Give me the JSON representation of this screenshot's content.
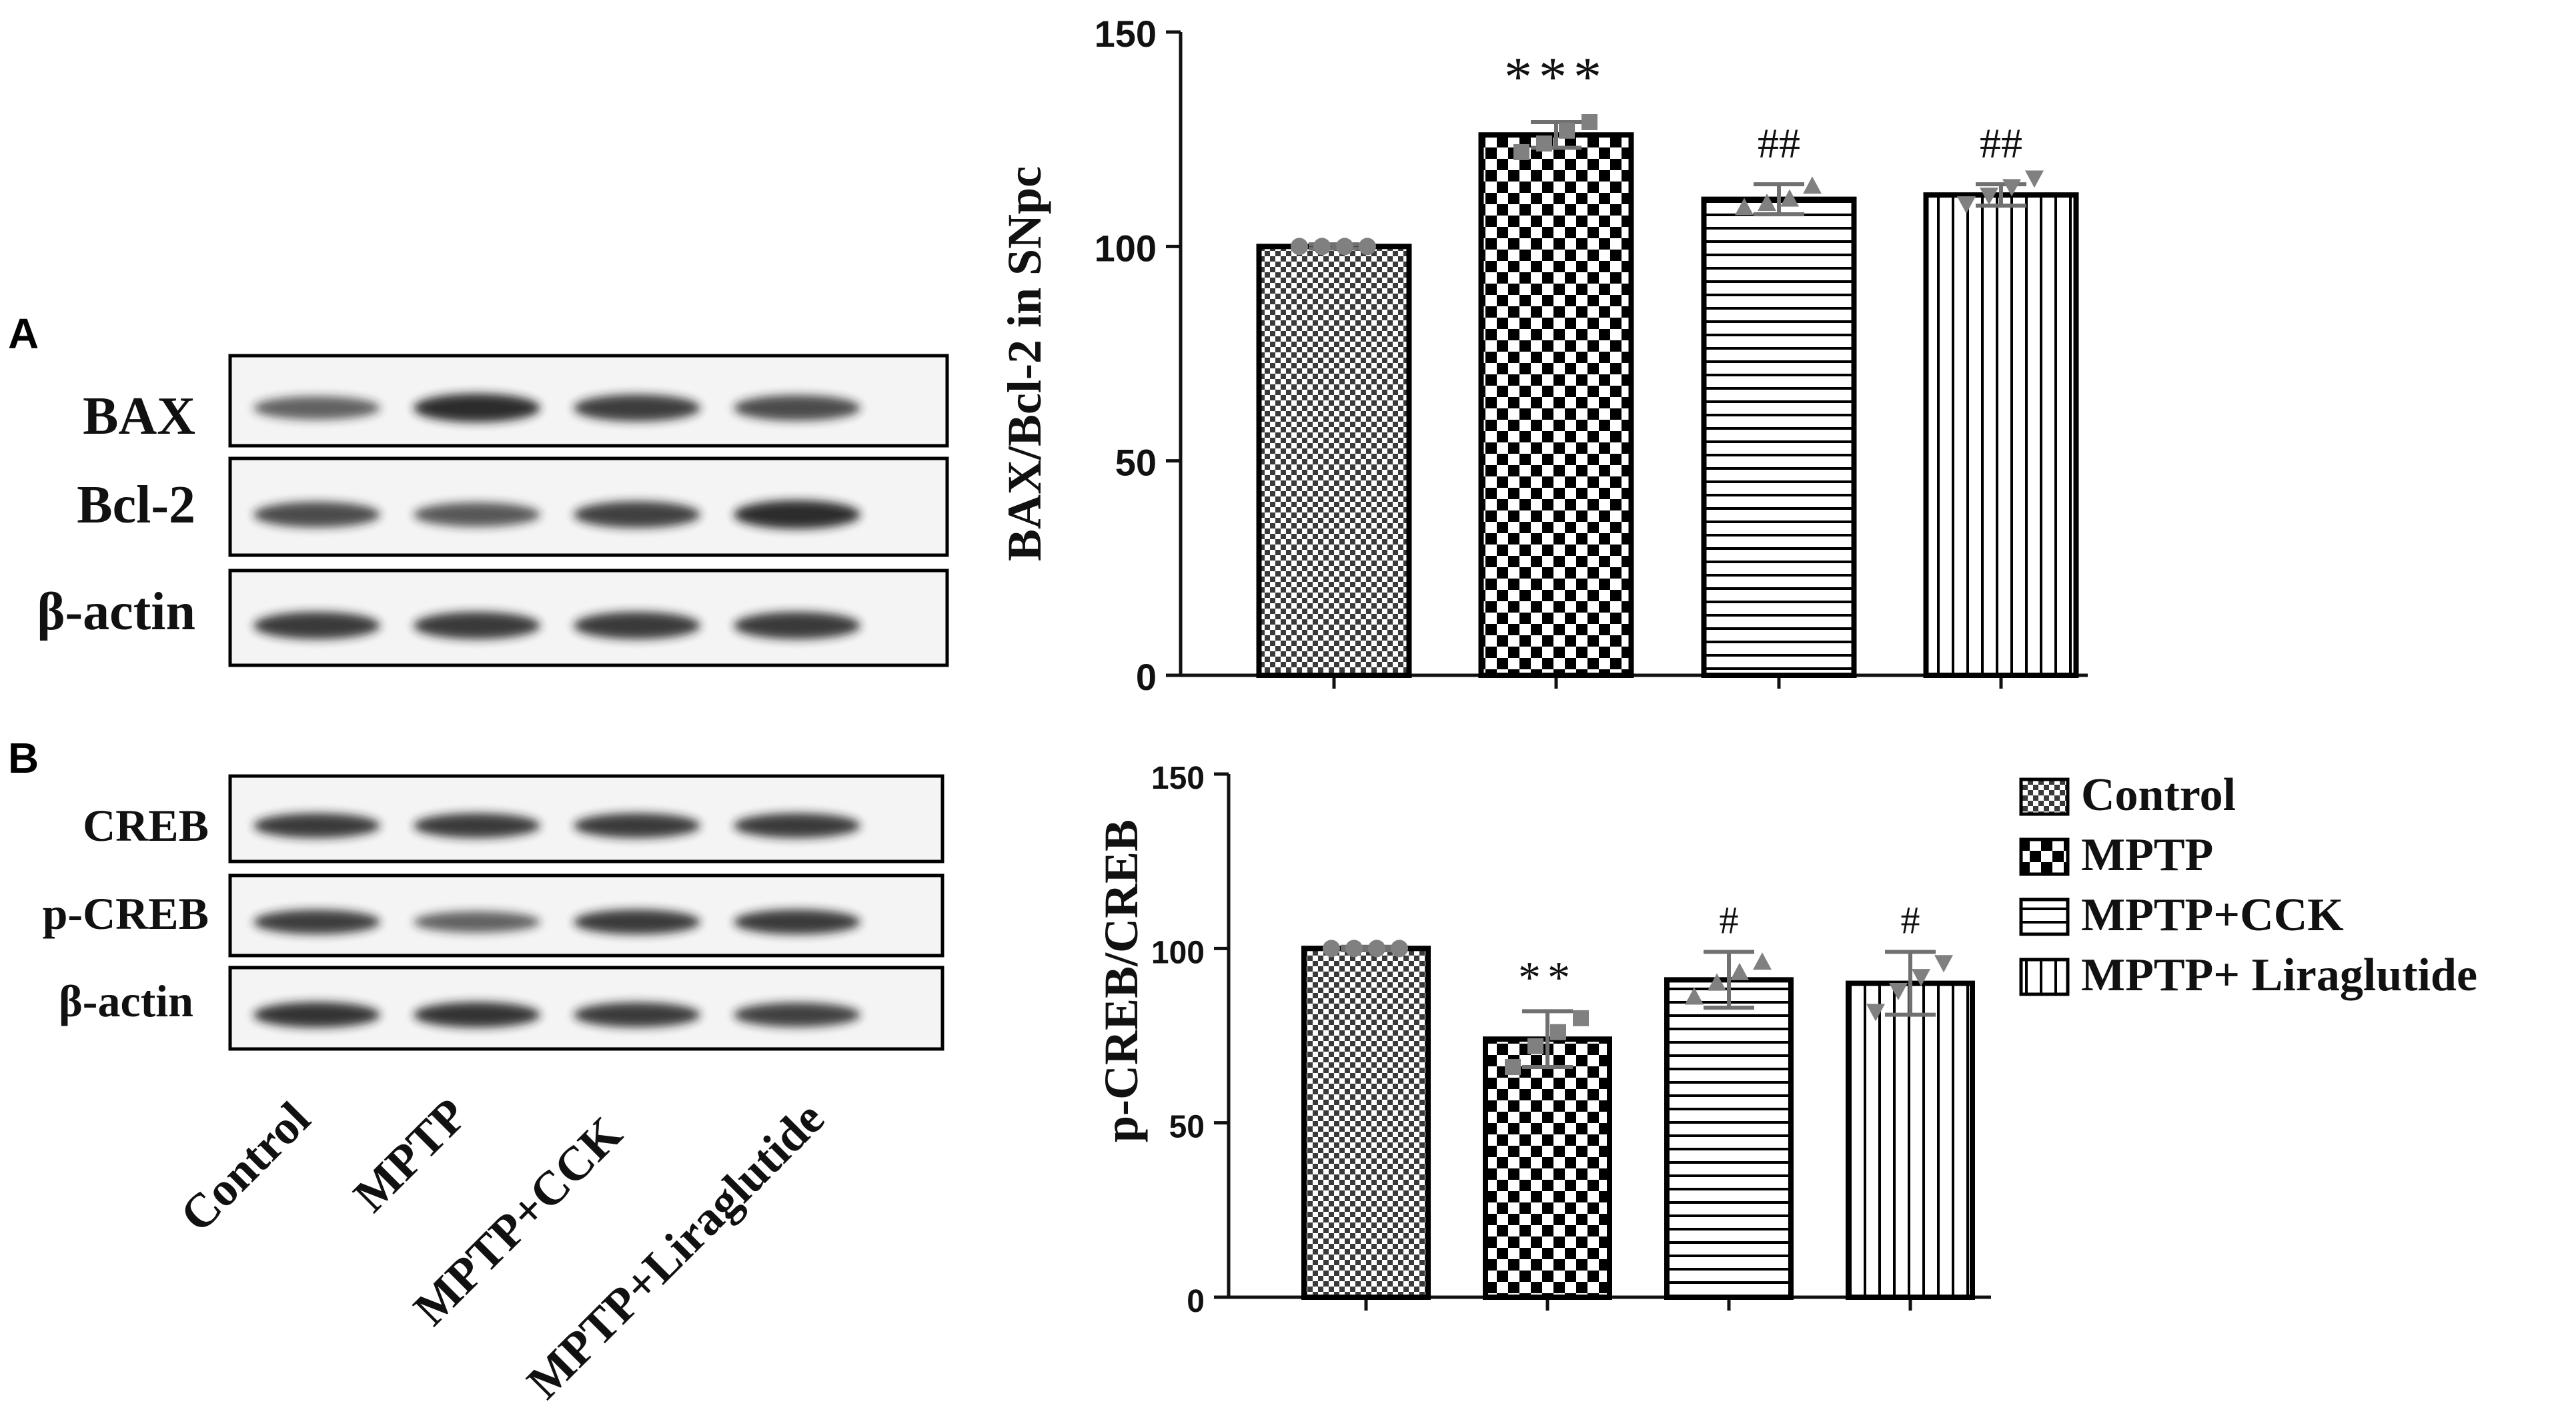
{
  "panels": {
    "a_label": "A",
    "b_label": "B"
  },
  "blots": {
    "a_rows": [
      "BAX",
      "Bcl-2",
      "β-actin"
    ],
    "b_rows": [
      "CREB",
      "p-CREB",
      "β-actin"
    ],
    "lanes": [
      "Control",
      "MPTP",
      "MPTP+CCK",
      "MPTP+Liraglutide"
    ],
    "a_intensity": [
      [
        0.55,
        0.95,
        0.82,
        0.72
      ],
      [
        0.72,
        0.62,
        0.8,
        0.95
      ],
      [
        0.85,
        0.85,
        0.85,
        0.85
      ]
    ],
    "b_intensity": [
      [
        0.85,
        0.85,
        0.85,
        0.85
      ],
      [
        0.82,
        0.55,
        0.85,
        0.85
      ],
      [
        0.9,
        0.9,
        0.85,
        0.8
      ]
    ]
  },
  "chart_data": [
    {
      "type": "bar",
      "categories": [
        "Control",
        "MPTP",
        "MPTP+CCK",
        "MPTP+ Liraglutide"
      ],
      "values": [
        100,
        126,
        111,
        112
      ],
      "errors": [
        0.5,
        3,
        3.5,
        2.5
      ],
      "points": [
        [
          100,
          100,
          100,
          100
        ],
        [
          122,
          124,
          127,
          129
        ],
        [
          109,
          110,
          111,
          114
        ],
        [
          110,
          112,
          114,
          116
        ]
      ],
      "annotations": [
        "",
        "***",
        "##",
        "##"
      ],
      "ylabel": "BAX/Bcl-2 in SNpc",
      "ylim": [
        0,
        150
      ],
      "yticks": [
        0,
        50,
        100,
        150
      ],
      "grid": false,
      "legend": "none"
    },
    {
      "type": "bar",
      "categories": [
        "Control",
        "MPTP",
        "MPTP+CCK",
        "MPTP+ Liraglutide"
      ],
      "values": [
        100,
        74,
        91,
        90
      ],
      "errors": [
        0.5,
        8,
        8,
        9
      ],
      "points": [
        [
          100,
          100,
          100,
          100
        ],
        [
          66,
          72,
          76,
          80
        ],
        [
          86,
          90,
          93,
          96
        ],
        [
          82,
          88,
          92,
          96
        ]
      ],
      "annotations": [
        "",
        "**",
        "#",
        "#"
      ],
      "ylabel": "p-CREB/CREB",
      "ylim": [
        0,
        150
      ],
      "yticks": [
        0,
        50,
        100,
        150
      ],
      "grid": false,
      "legend": "right"
    }
  ],
  "legend": {
    "items": [
      {
        "label": "Control",
        "pattern": "fine-check"
      },
      {
        "label": "MPTP",
        "pattern": "coarse-check"
      },
      {
        "label": "MPTP+CCK",
        "pattern": "h-lines"
      },
      {
        "label": "MPTP+ Liraglutide",
        "pattern": "v-lines"
      }
    ]
  },
  "colors": {
    "axis": "#111111",
    "bar_outline": "#000000",
    "error": "#707070",
    "points": "#808080",
    "blot_band": "#1a1a1a",
    "blot_bg": "#f4f4f4"
  }
}
